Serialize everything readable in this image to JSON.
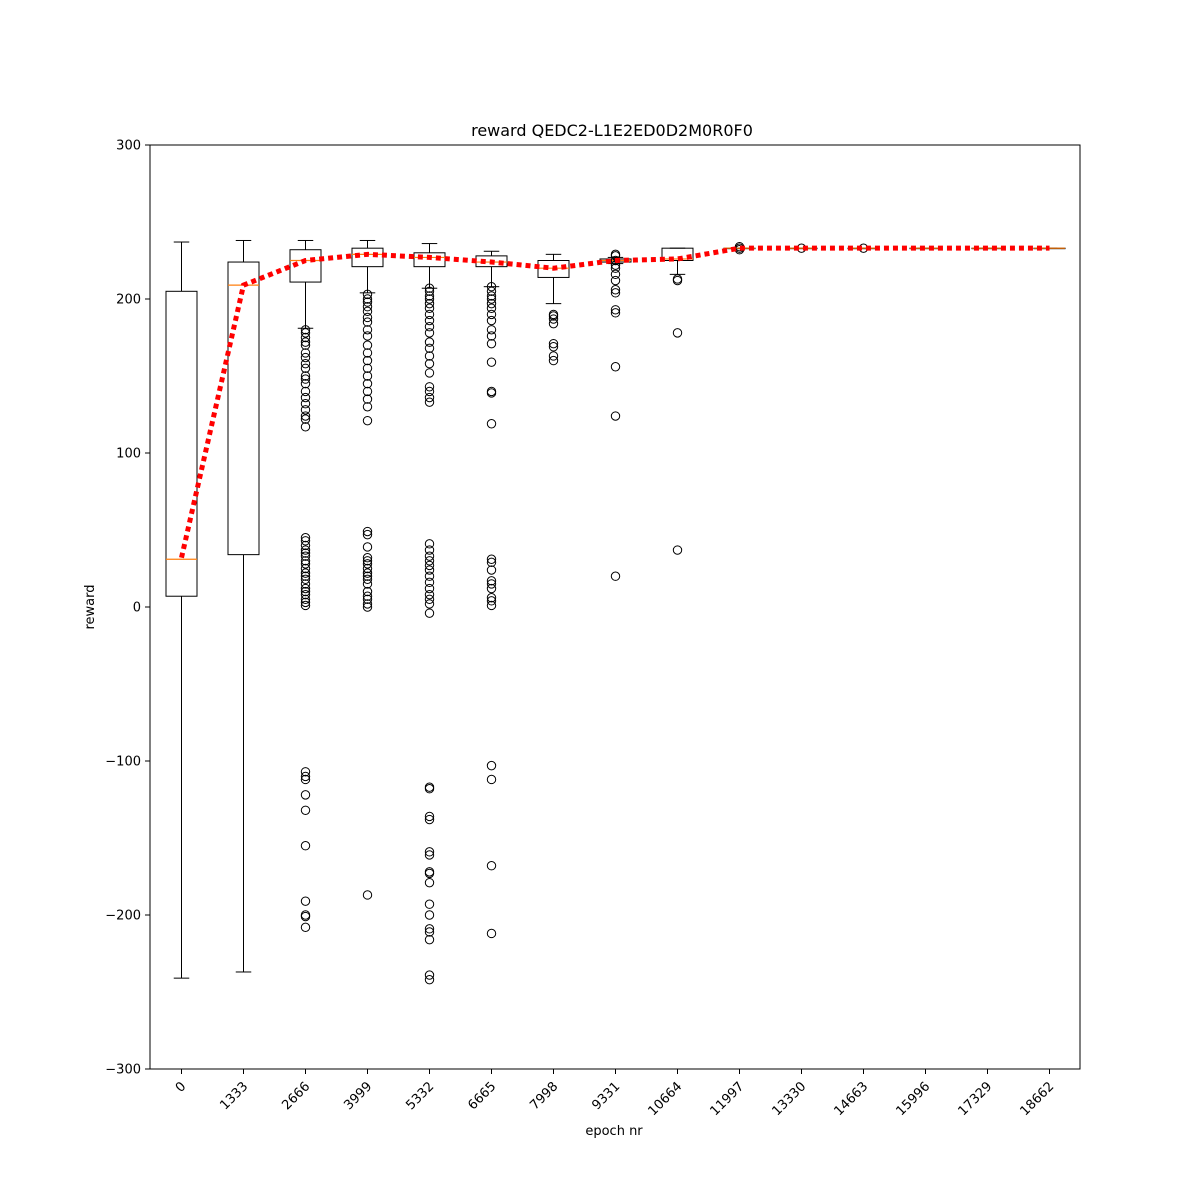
{
  "chart_data": {
    "type": "box",
    "title": "reward QEDC2-L1E2ED0D2M0R0F0",
    "xlabel": "epoch nr",
    "ylabel": "reward",
    "ylim": [
      -300,
      300
    ],
    "yticks": [
      -300,
      -200,
      -100,
      0,
      100,
      200,
      300
    ],
    "yticklabels": [
      "−300",
      "−200",
      "−100",
      "0",
      "100",
      "200",
      "300"
    ],
    "categories": [
      "0",
      "1333",
      "2666",
      "3999",
      "5332",
      "6665",
      "7998",
      "9331",
      "10664",
      "11997",
      "13330",
      "14663",
      "15996",
      "17329",
      "18662"
    ],
    "boxes": [
      {
        "q1": 7,
        "median": 31,
        "q3": 205,
        "whisker_low": -241,
        "whisker_high": 237,
        "outliers": []
      },
      {
        "q1": 34,
        "median": 209,
        "q3": 224,
        "whisker_low": -237,
        "whisker_high": 238,
        "outliers": []
      },
      {
        "q1": 211,
        "median": 225,
        "q3": 232,
        "whisker_low": 181,
        "whisker_high": 238,
        "outliers": [
          180,
          178,
          175,
          172,
          170,
          165,
          162,
          158,
          155,
          150,
          148,
          145,
          140,
          136,
          132,
          128,
          124,
          122,
          117,
          45,
          43,
          40,
          37,
          35,
          33,
          30,
          28,
          25,
          22,
          20,
          18,
          15,
          12,
          10,
          8,
          5,
          3,
          1,
          -107,
          -110,
          -112,
          -122,
          -132,
          -155,
          -191,
          -200,
          -201,
          -208
        ]
      },
      {
        "q1": 221,
        "median": 229,
        "q3": 233,
        "whisker_low": 204,
        "whisker_high": 238,
        "outliers": [
          203,
          200,
          198,
          195,
          192,
          188,
          185,
          180,
          176,
          170,
          165,
          160,
          155,
          150,
          145,
          140,
          135,
          130,
          121,
          49,
          47,
          39,
          32,
          30,
          28,
          25,
          22,
          20,
          18,
          15,
          10,
          7,
          5,
          2,
          0,
          -187
        ]
      },
      {
        "q1": 221,
        "median": 227,
        "q3": 230,
        "whisker_low": 207,
        "whisker_high": 236,
        "outliers": [
          207,
          205,
          202,
          200,
          197,
          194,
          190,
          186,
          182,
          178,
          172,
          168,
          163,
          158,
          152,
          143,
          140,
          136,
          133,
          41,
          37,
          33,
          30,
          27,
          24,
          20,
          16,
          12,
          8,
          5,
          2,
          -4,
          -117,
          -118,
          -136,
          -138,
          -159,
          -161,
          -172,
          -173,
          -179,
          -193,
          -200,
          -209,
          -211,
          -216,
          -239,
          -242
        ]
      },
      {
        "q1": 221,
        "median": 224,
        "q3": 228,
        "whisker_low": 208,
        "whisker_high": 231,
        "outliers": [
          208,
          205,
          202,
          200,
          197,
          194,
          190,
          186,
          180,
          176,
          171,
          159,
          140,
          139,
          119,
          31,
          29,
          24,
          17,
          15,
          12,
          6,
          4,
          1,
          -103,
          -112,
          -168,
          -212
        ]
      },
      {
        "q1": 214,
        "median": 220,
        "q3": 225,
        "whisker_low": 197,
        "whisker_high": 229,
        "outliers": [
          190,
          189,
          187,
          184,
          171,
          169,
          163,
          160
        ]
      },
      {
        "q1": 224,
        "median": 225,
        "q3": 226,
        "whisker_low": 223,
        "whisker_high": 227,
        "outliers": [
          229,
          228,
          225,
          222,
          220,
          216,
          212,
          206,
          204,
          193,
          191,
          156,
          124,
          20
        ]
      },
      {
        "q1": 225,
        "median": 226,
        "q3": 233,
        "whisker_low": 216,
        "whisker_high": 233,
        "outliers": [
          213,
          212,
          178,
          37
        ]
      },
      {
        "q1": 233,
        "median": 233,
        "q3": 233,
        "whisker_low": 233,
        "whisker_high": 233,
        "outliers": [
          234,
          233,
          232
        ]
      },
      {
        "q1": 233,
        "median": 233,
        "q3": 233,
        "whisker_low": 233,
        "whisker_high": 233,
        "outliers": [
          233
        ]
      },
      {
        "q1": 233,
        "median": 233,
        "q3": 233,
        "whisker_low": 233,
        "whisker_high": 233,
        "outliers": [
          233
        ]
      },
      {
        "q1": 233,
        "median": 233,
        "q3": 233,
        "whisker_low": 233,
        "whisker_high": 233,
        "outliers": []
      },
      {
        "q1": 233,
        "median": 233,
        "q3": 233,
        "whisker_low": 233,
        "whisker_high": 233,
        "outliers": []
      },
      {
        "q1": 233,
        "median": 233,
        "q3": 233,
        "whisker_low": 233,
        "whisker_high": 233,
        "outliers": []
      }
    ],
    "mean_line": {
      "values": [
        32,
        209,
        225,
        229,
        227,
        224,
        220,
        225,
        226,
        233,
        233,
        233,
        233,
        233,
        233
      ],
      "color": "#ff0000",
      "style": "dotted"
    },
    "colors": {
      "median": "#ff7f0e",
      "box": "#000000",
      "mean_line": "#ff0000"
    }
  }
}
